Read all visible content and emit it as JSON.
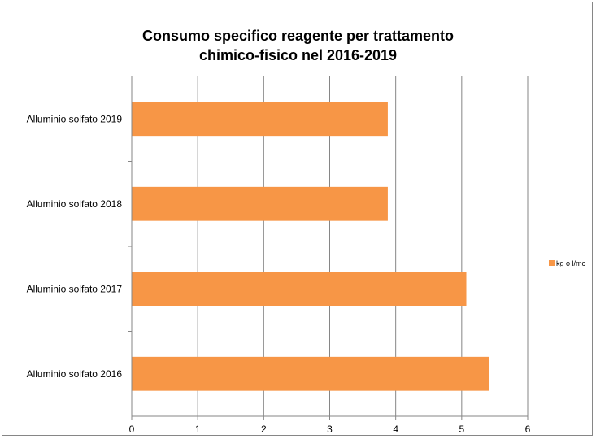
{
  "chart_data": {
    "type": "bar",
    "orientation": "horizontal",
    "title": "Consumo specifico reagente per trattamento\nchimico-fisico  nel 2016-2019",
    "categories": [
      "Alluminio solfato 2019",
      "Alluminio solfato 2018",
      "Alluminio solfato 2017",
      "Alluminio solfato 2016"
    ],
    "series": [
      {
        "name": "kg o l/mc",
        "values": [
          3.88,
          3.88,
          5.07,
          5.42
        ],
        "color": "#F79646"
      }
    ],
    "xlim": [
      0,
      6
    ],
    "xticks": [
      "0",
      "1",
      "2",
      "3",
      "4",
      "5",
      "6"
    ],
    "grid": true,
    "legend": "right"
  }
}
